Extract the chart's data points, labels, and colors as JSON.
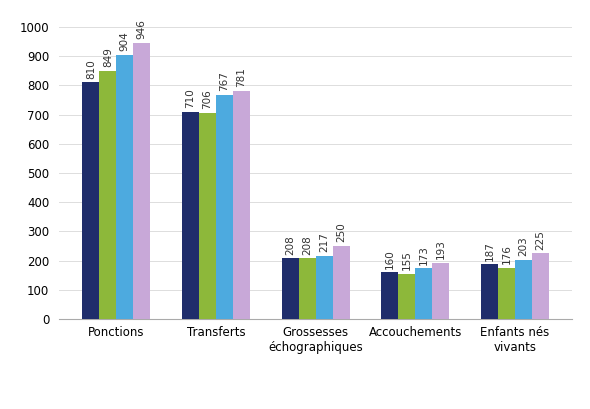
{
  "categories": [
    "Ponctions",
    "Transferts",
    "Grossesses\néchographiques",
    "Accouchements",
    "Enfants nés\nvivants"
  ],
  "series": {
    "2011": [
      810,
      710,
      208,
      160,
      187
    ],
    "2012": [
      849,
      706,
      208,
      155,
      176
    ],
    "2013": [
      904,
      767,
      217,
      173,
      203
    ],
    "2014": [
      946,
      781,
      250,
      193,
      225
    ]
  },
  "colors": {
    "2011": "#1F2D6B",
    "2012": "#8DB83A",
    "2013": "#4DAADF",
    "2014": "#C8A8D8"
  },
  "ylim": [
    0,
    1050
  ],
  "yticks": [
    0,
    100,
    200,
    300,
    400,
    500,
    600,
    700,
    800,
    900,
    1000
  ],
  "bar_width": 0.17,
  "label_fontsize": 7.5,
  "legend_fontsize": 8.5,
  "tick_fontsize": 8.5,
  "background_color": "#ffffff",
  "value_label_color": "#333333"
}
